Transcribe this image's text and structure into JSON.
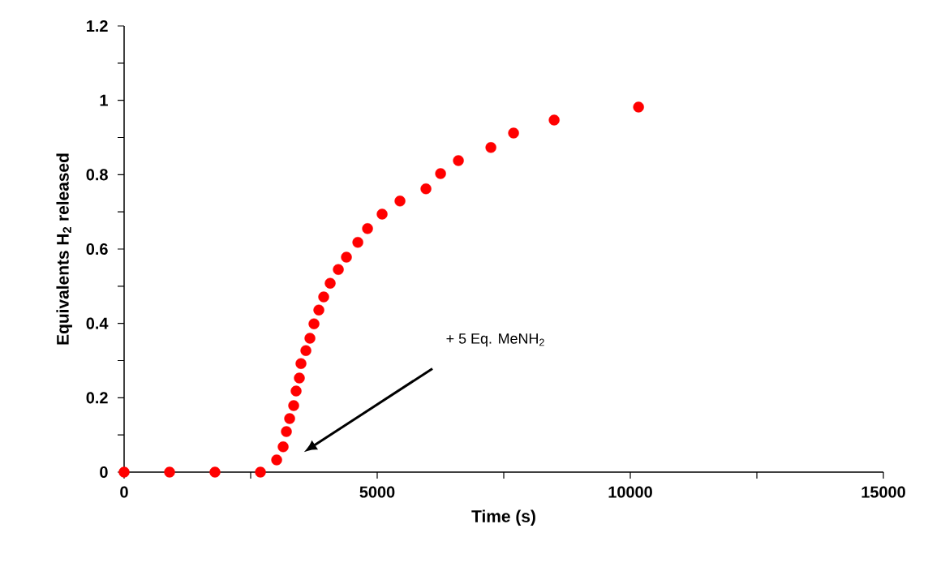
{
  "chart_data": {
    "type": "scatter",
    "xlabel": "Time (s)",
    "ylabel": "Equivalents H$_{2}$ released",
    "x": [
      0,
      898,
      1795,
      2693,
      3014,
      3142,
      3206,
      3270,
      3350,
      3398,
      3462,
      3494,
      3591,
      3671,
      3751,
      3847,
      3943,
      4071,
      4232,
      4392,
      4617,
      4809,
      5097,
      5450,
      5963,
      6252,
      6604,
      7246,
      7694,
      8496,
      10163
    ],
    "values": [
      0,
      0,
      0,
      0,
      0.033,
      0.068,
      0.109,
      0.144,
      0.179,
      0.218,
      0.253,
      0.292,
      0.327,
      0.36,
      0.399,
      0.436,
      0.471,
      0.508,
      0.545,
      0.578,
      0.618,
      0.655,
      0.694,
      0.729,
      0.762,
      0.803,
      0.838,
      0.873,
      0.912,
      0.947,
      0.982
    ],
    "color": "#ff0000",
    "marker": "circle",
    "xlim": [
      0,
      15000
    ],
    "ylim": [
      0,
      1.2
    ],
    "xticks": [
      0,
      5000,
      10000,
      15000
    ],
    "yticks": [
      0,
      0.2,
      0.4,
      0.6,
      0.8,
      1,
      1.2
    ],
    "annotations": [
      "+ 5 Eq. MeNH$_{2}$"
    ]
  }
}
